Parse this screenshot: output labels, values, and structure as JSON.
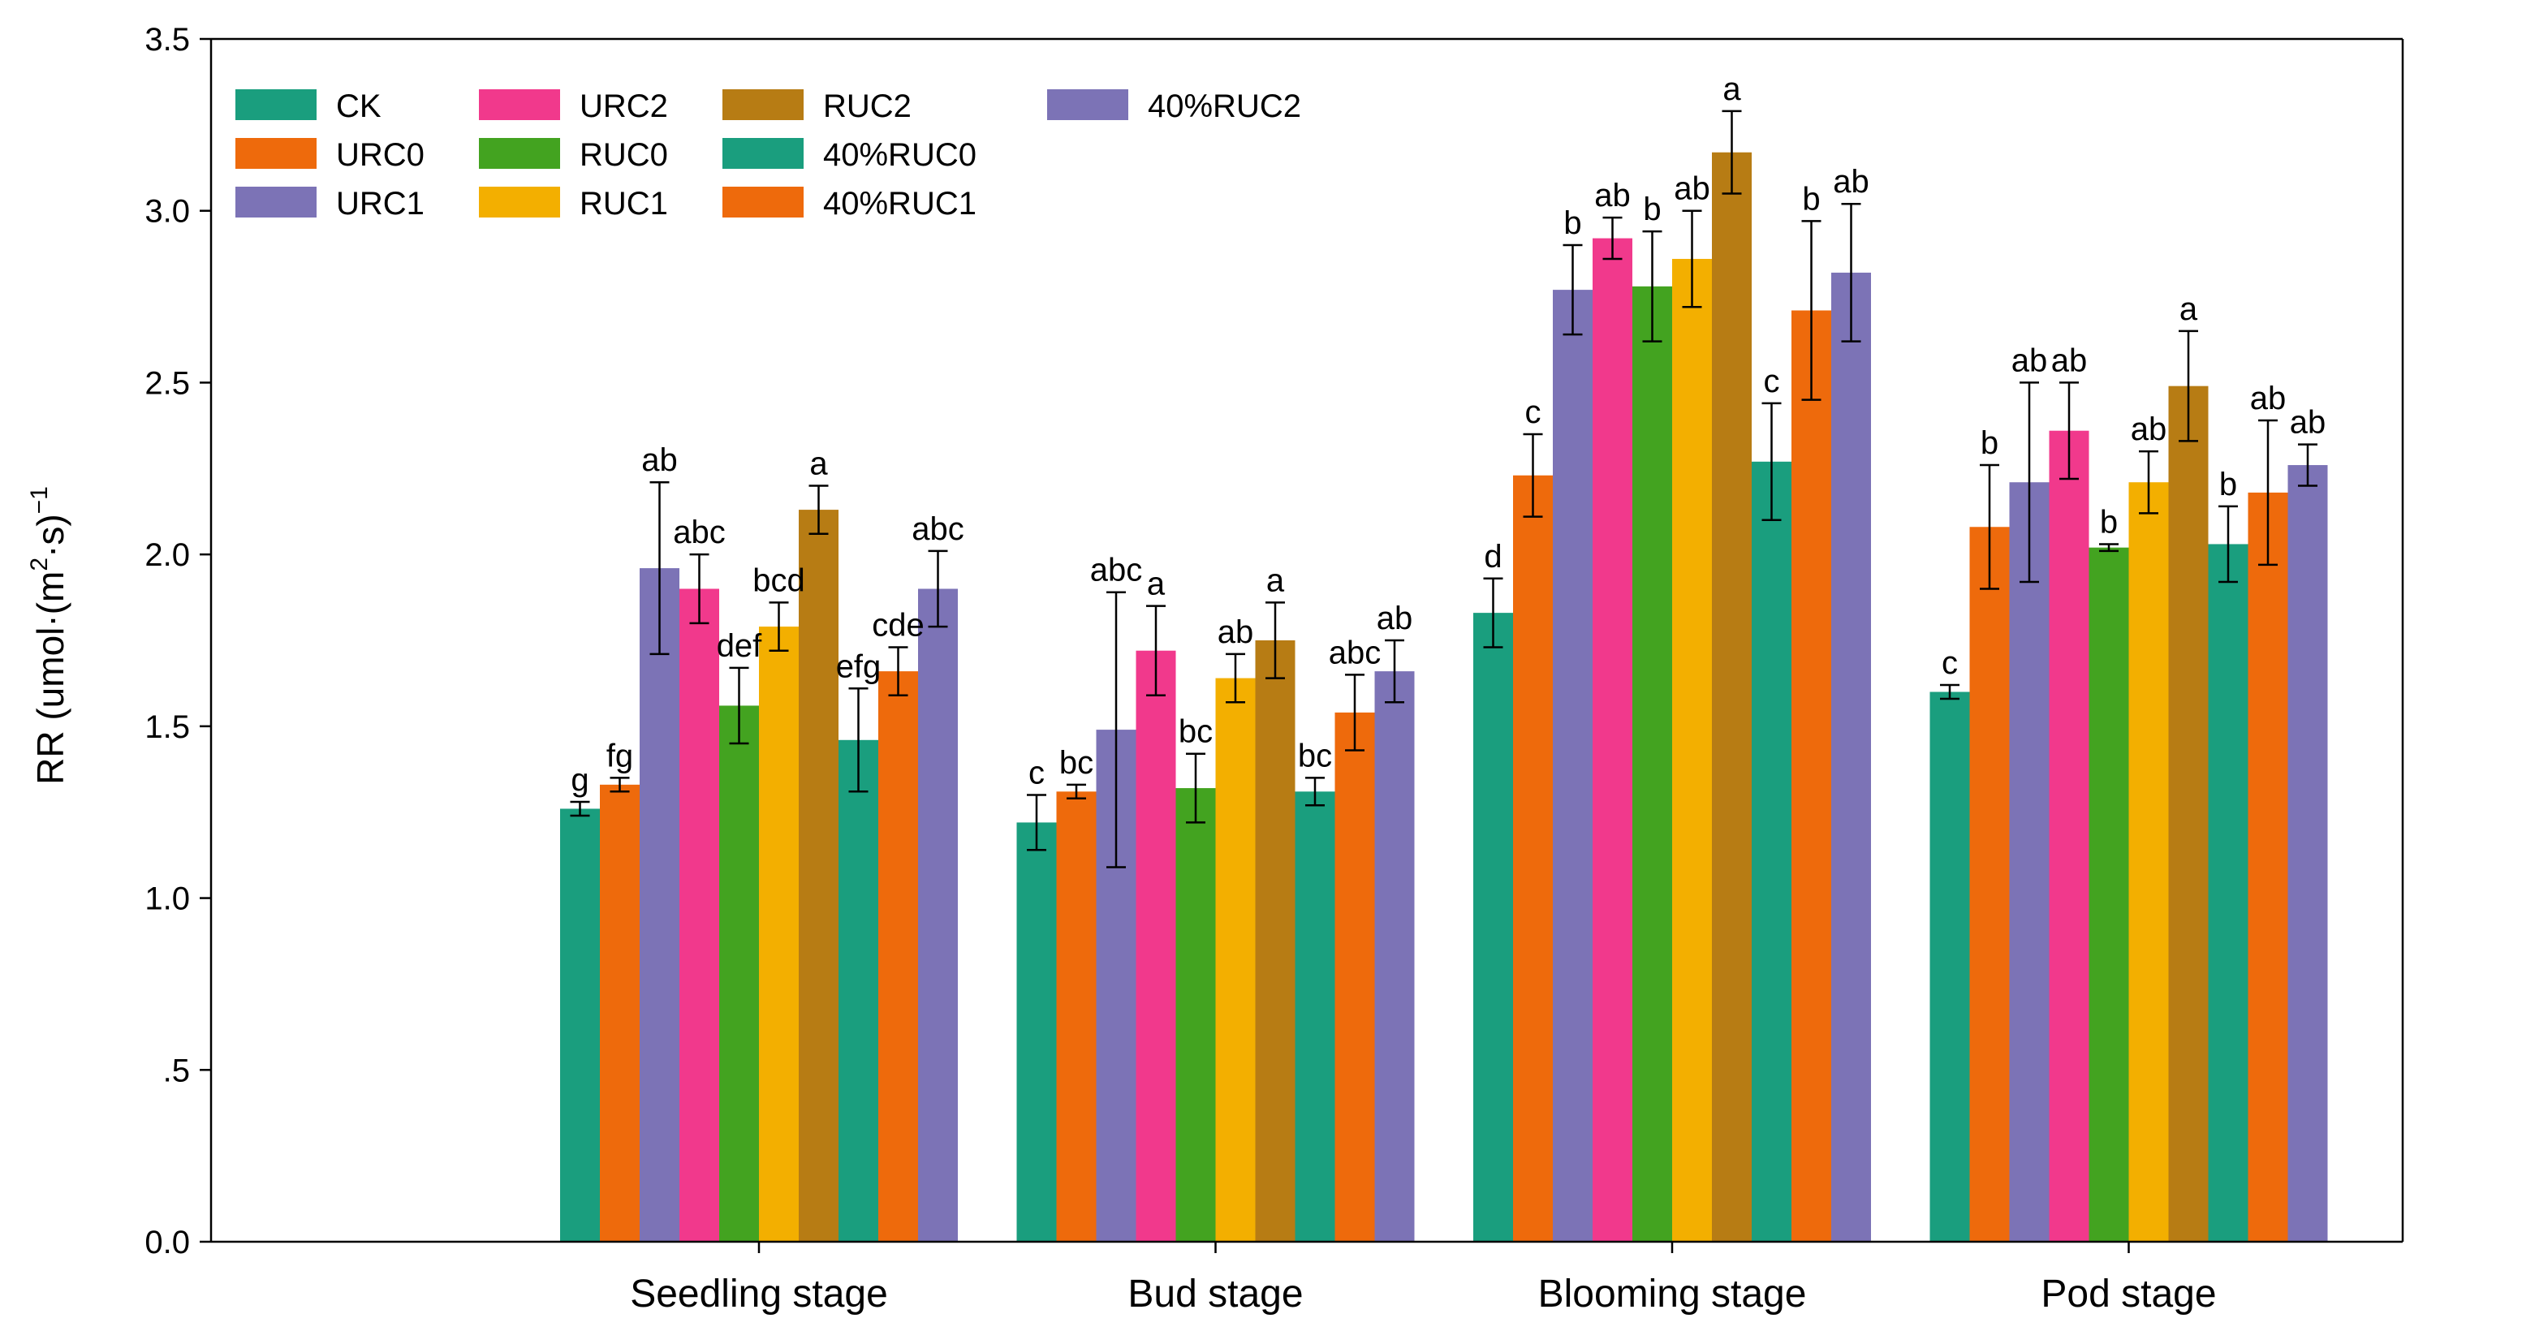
{
  "chart_data": {
    "type": "bar",
    "title": "",
    "xlabel": "",
    "ylabel": "RR (umol·(m²·s)⁻¹)",
    "ylabel_parts": {
      "prefix": "RR (umol·(m",
      "sup2": "2",
      "mid": "·s)",
      "sup_neg1": "−1"
    },
    "ylim": [
      0,
      3.5
    ],
    "yticks": [
      0,
      0.5,
      1.0,
      1.5,
      2.0,
      2.5,
      3.0,
      3.5
    ],
    "ytick_labels": [
      "0.0",
      ".5",
      "1.0",
      "1.5",
      "2.0",
      "2.5",
      "3.0",
      "3.5"
    ],
    "categories": [
      "Seedling stage",
      "Bud stage",
      "Blooming stage",
      "Pod stage"
    ],
    "legend_position": "top-left",
    "series": [
      {
        "name": "CK",
        "color": "#1a9e7e",
        "values": [
          1.26,
          1.22,
          1.83,
          1.6
        ],
        "errors": [
          0.02,
          0.08,
          0.1,
          0.02
        ],
        "letters": [
          "g",
          "c",
          "d",
          "c"
        ]
      },
      {
        "name": "URC0",
        "color": "#ee6a0c",
        "values": [
          1.33,
          1.31,
          2.23,
          2.08
        ],
        "errors": [
          0.02,
          0.02,
          0.12,
          0.18
        ],
        "letters": [
          "fg",
          "bc",
          "c",
          "b"
        ]
      },
      {
        "name": "URC1",
        "color": "#7c73b6",
        "values": [
          1.96,
          1.49,
          2.77,
          2.21
        ],
        "errors": [
          0.25,
          0.4,
          0.13,
          0.29
        ],
        "letters": [
          "ab",
          "abc",
          "b",
          "ab"
        ]
      },
      {
        "name": "URC2",
        "color": "#f1398c",
        "values": [
          1.9,
          1.72,
          2.92,
          2.36
        ],
        "errors": [
          0.1,
          0.13,
          0.06,
          0.14
        ],
        "letters": [
          "abc",
          "a",
          "ab",
          "ab"
        ]
      },
      {
        "name": "RUC0",
        "color": "#43a320",
        "values": [
          1.56,
          1.32,
          2.78,
          2.02
        ],
        "errors": [
          0.11,
          0.1,
          0.16,
          0.01
        ],
        "letters": [
          "def",
          "bc",
          "b",
          "b"
        ]
      },
      {
        "name": "RUC1",
        "color": "#f3af00",
        "values": [
          1.79,
          1.64,
          2.86,
          2.21
        ],
        "errors": [
          0.07,
          0.07,
          0.14,
          0.09
        ],
        "letters": [
          "bcd",
          "ab",
          "ab",
          "ab"
        ]
      },
      {
        "name": "RUC2",
        "color": "#b77c14",
        "values": [
          2.13,
          1.75,
          3.17,
          2.49
        ],
        "errors": [
          0.07,
          0.11,
          0.12,
          0.16
        ],
        "letters": [
          "a",
          "a",
          "a",
          "a"
        ]
      },
      {
        "name": "40%RUC0",
        "color": "#1a9e7e",
        "values": [
          1.46,
          1.31,
          2.27,
          2.03
        ],
        "errors": [
          0.15,
          0.04,
          0.17,
          0.11
        ],
        "letters": [
          "efg",
          "bc",
          "c",
          "b"
        ]
      },
      {
        "name": "40%RUC1",
        "color": "#ee6a0c",
        "values": [
          1.66,
          1.54,
          2.71,
          2.18
        ],
        "errors": [
          0.07,
          0.11,
          0.26,
          0.21
        ],
        "letters": [
          "cde",
          "abc",
          "b",
          "ab"
        ]
      },
      {
        "name": "40%RUC2",
        "color": "#7c73b6",
        "values": [
          1.9,
          1.66,
          2.82,
          2.26
        ],
        "errors": [
          0.11,
          0.09,
          0.2,
          0.06
        ],
        "letters": [
          "abc",
          "ab",
          "ab",
          "ab"
        ]
      }
    ]
  }
}
